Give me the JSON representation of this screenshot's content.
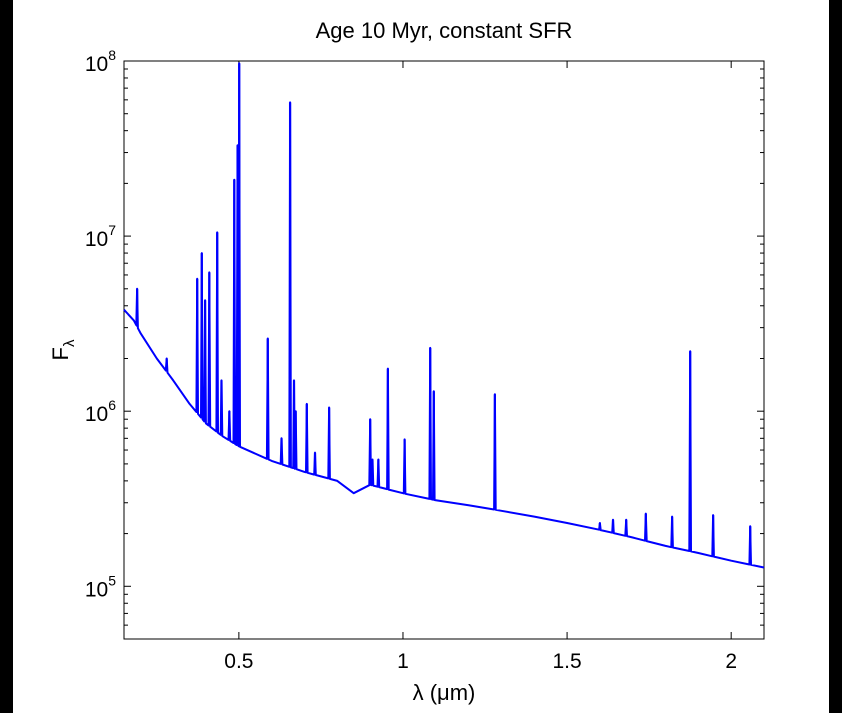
{
  "chart_data": {
    "type": "line",
    "title": "Age 10 Myr, constant SFR",
    "xlabel": "λ (μm)",
    "ylabel": "F",
    "ylabel_subscript": "λ",
    "xlim": [
      0.15,
      2.1
    ],
    "ylim": [
      50000,
      100000000
    ],
    "yscale": "log",
    "grid": false,
    "legend": "none",
    "line_color": "#0000FF",
    "background_color": "#FFFFFF",
    "x_ticks": [
      {
        "value": 0.5,
        "label": "0.5"
      },
      {
        "value": 1,
        "label": "1"
      },
      {
        "value": 1.5,
        "label": "1.5"
      },
      {
        "value": 2,
        "label": "2"
      }
    ],
    "y_ticks": [
      {
        "value": 100000,
        "base": "10",
        "exponent": "5"
      },
      {
        "value": 1000000,
        "base": "10",
        "exponent": "6"
      },
      {
        "value": 10000000,
        "base": "10",
        "exponent": "7"
      },
      {
        "value": 100000000,
        "base": "10",
        "exponent": "8"
      }
    ],
    "series": [
      {
        "continuum": {
          "x": [
            0.15,
            0.18,
            0.2,
            0.25,
            0.3,
            0.35,
            0.4,
            0.45,
            0.5,
            0.6,
            0.7,
            0.8,
            0.85,
            0.9,
            1.0,
            1.1,
            1.2,
            1.3,
            1.4,
            1.5,
            1.6,
            1.7,
            1.8,
            1.9,
            2.0,
            2.1
          ],
          "y": [
            3800000,
            3300000,
            2800000,
            2000000,
            1500000,
            1100000,
            850000,
            720000,
            630000,
            520000,
            450000,
            400000,
            340000,
            380000,
            340000,
            310000,
            290000,
            270000,
            250000,
            230000,
            210000,
            190000,
            170000,
            155000,
            140000,
            128000
          ]
        },
        "lines": [
          {
            "x": 0.19,
            "y": 5000000
          },
          {
            "x": 0.28,
            "y": 2000000
          },
          {
            "x": 0.373,
            "y": 5700000
          },
          {
            "x": 0.387,
            "y": 8000000
          },
          {
            "x": 0.397,
            "y": 4300000
          },
          {
            "x": 0.41,
            "y": 6200000
          },
          {
            "x": 0.434,
            "y": 10500000
          },
          {
            "x": 0.447,
            "y": 1500000
          },
          {
            "x": 0.471,
            "y": 1000000
          },
          {
            "x": 0.486,
            "y": 21000000
          },
          {
            "x": 0.496,
            "y": 33000000
          },
          {
            "x": 0.501,
            "y": 97000000
          },
          {
            "x": 0.588,
            "y": 2600000
          },
          {
            "x": 0.63,
            "y": 700000
          },
          {
            "x": 0.656,
            "y": 58000000
          },
          {
            "x": 0.668,
            "y": 1500000
          },
          {
            "x": 0.673,
            "y": 1000000
          },
          {
            "x": 0.707,
            "y": 1100000
          },
          {
            "x": 0.732,
            "y": 580000
          },
          {
            "x": 0.775,
            "y": 1050000
          },
          {
            "x": 0.9,
            "y": 900000
          },
          {
            "x": 0.907,
            "y": 530000
          },
          {
            "x": 0.925,
            "y": 530000
          },
          {
            "x": 0.954,
            "y": 1750000
          },
          {
            "x": 1.005,
            "y": 690000
          },
          {
            "x": 1.083,
            "y": 2300000
          },
          {
            "x": 1.094,
            "y": 1300000
          },
          {
            "x": 1.28,
            "y": 1250000
          },
          {
            "x": 1.6,
            "y": 230000
          },
          {
            "x": 1.64,
            "y": 240000
          },
          {
            "x": 1.68,
            "y": 240000
          },
          {
            "x": 1.74,
            "y": 260000
          },
          {
            "x": 1.82,
            "y": 250000
          },
          {
            "x": 1.875,
            "y": 2200000
          },
          {
            "x": 1.945,
            "y": 255000
          },
          {
            "x": 2.058,
            "y": 220000
          }
        ]
      }
    ]
  }
}
